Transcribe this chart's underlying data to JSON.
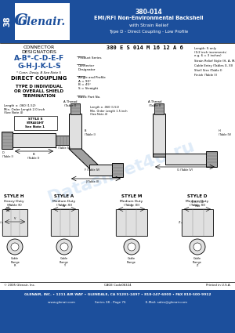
{
  "title_line1": "380-014",
  "title_line2": "EMI/RFI Non-Environmental Backshell",
  "title_line3": "with Strain Relief",
  "title_line4": "Type D - Direct Coupling - Low Profile",
  "header_bg": "#1c4f9c",
  "logo_text": "Glenair.",
  "tab_text": "38",
  "connector_designators": "CONNECTOR\nDESIGNATORS",
  "designators_line1": "A-B*-C-D-E-F",
  "designators_line2": "G-H-J-K-L-S",
  "designators_note": "* Conn. Desig. B See Note 5",
  "coupling_text": "DIRECT COUPLING",
  "termination_text": "TYPE D INDIVIDUAL\nOR OVERALL SHIELD\nTERMINATION",
  "part_number_example": "380 E S 014 M 16 12 A 6",
  "style_h_title": "STYLE H",
  "style_h_sub": "Heavy Duty\n(Table K)",
  "style_a_title": "STYLE A",
  "style_a_sub": "Medium Duty\n(Table XI)",
  "style_m_title": "STYLE M",
  "style_m_sub": "Medium Duty\n(Table XI)",
  "style_d_title": "STYLE D",
  "style_d_sub": "Medium Duty\n(Table XI)",
  "footer_line1": "GLENAIR, INC. • 1211 AIR WAY • GLENDALE, CA 91201-2497 • 818-247-6000 • FAX 818-500-9912",
  "footer_line2": "www.glenair.com                    Series 38 - Page 76                    E-Mail: sales@glenair.com",
  "footer_bg": "#1c4f9c",
  "bg_color": "#ffffff",
  "watermark_text": "Datasheet4U.ru",
  "style_s_label": "STYLE S\nSTRAIGHT\nSee Note 1",
  "copyright": "© 2005 Glenair, Inc.",
  "cage_code": "CAGE Code06324",
  "printed": "Printed in U.S.A.",
  "gray1": "#c8c8c8",
  "gray2": "#a0a0a0",
  "gray3": "#e0e0e0"
}
